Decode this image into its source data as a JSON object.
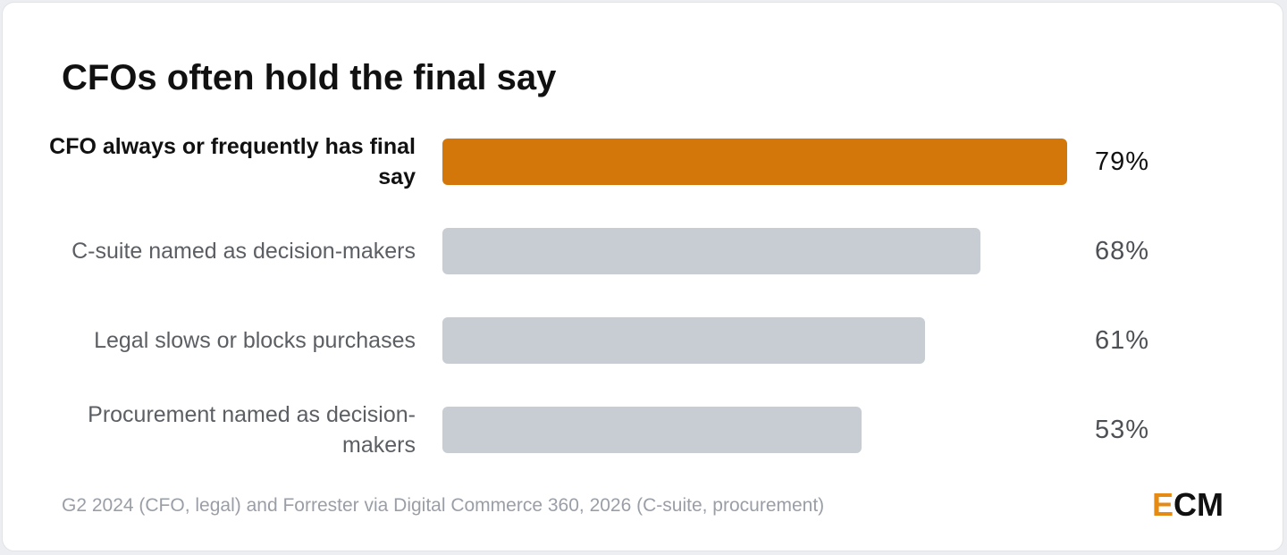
{
  "colors": {
    "highlight": "#d4770b",
    "muted_bar": "#c8ccd3",
    "logo_accent": "#e58a12"
  },
  "chart_data": {
    "type": "bar",
    "orientation": "horizontal",
    "title": "CFOs often hold the final say",
    "categories": [
      "CFO always or frequently has final say",
      "C-suite named as decision-makers",
      "Legal slows or blocks purchases",
      "Procurement named as decision-makers"
    ],
    "values": [
      79,
      68,
      61,
      53
    ],
    "value_labels": [
      "79%",
      "68%",
      "61%",
      "53%"
    ],
    "highlighted_index": 0,
    "xlim": [
      0,
      87
    ],
    "grid": false,
    "legend": false
  },
  "source": "G2 2024 (CFO, legal) and Forrester via Digital Commerce 360, 2026 (C-suite, procurement)",
  "logo": {
    "text": "ECM",
    "accent_letter": "E",
    "rest": "CM"
  }
}
